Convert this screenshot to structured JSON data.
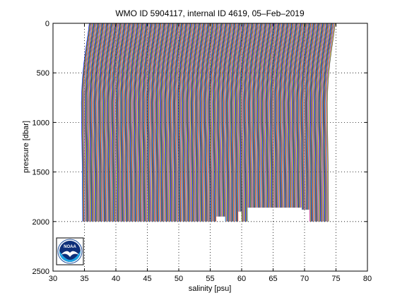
{
  "chart_data": {
    "type": "line",
    "title": "WMO ID 5904117, internal ID 4619, 05–Feb–2019",
    "xlabel": "salinity [psu]",
    "ylabel": "pressure [dbar]",
    "xlim": [
      30,
      80
    ],
    "ylim": [
      0,
      2500
    ],
    "y_reversed": true,
    "grid": true,
    "x_ticks": [
      "30",
      "35",
      "40",
      "45",
      "50",
      "55",
      "60",
      "65",
      "70",
      "75",
      "80"
    ],
    "y_ticks": [
      "0",
      "500",
      "1000",
      "1500",
      "2000",
      "2500"
    ],
    "profile_offset_psu": 0.1,
    "profile_count": 392,
    "profile_template": {
      "pressure": [
        0,
        100,
        200,
        300,
        400,
        500,
        600,
        700,
        800,
        1000,
        1200,
        1500,
        1800,
        2000
      ],
      "salinity": [
        35.78,
        35.58,
        35.35,
        35.12,
        34.92,
        34.76,
        34.64,
        34.56,
        34.52,
        34.54,
        34.6,
        34.66,
        34.7,
        34.72
      ]
    },
    "shallow_profile_max_pressure": [
      {
        "salinity_start": 56,
        "salinity_end": 57.4,
        "max_pressure": 1950
      },
      {
        "salinity_start": 59.5,
        "salinity_end": 60,
        "max_pressure": 1900
      },
      {
        "salinity_start": 61,
        "salinity_end": 69.6,
        "max_pressure": 1860
      },
      {
        "salinity_start": 69.6,
        "salinity_end": 70.8,
        "max_pressure": 1880
      }
    ],
    "palette": [
      "#0000ff",
      "#008000",
      "#ff0000",
      "#00bfbf",
      "#bf00bf",
      "#bfbf00",
      "#404040"
    ],
    "logo": "NOAA"
  }
}
